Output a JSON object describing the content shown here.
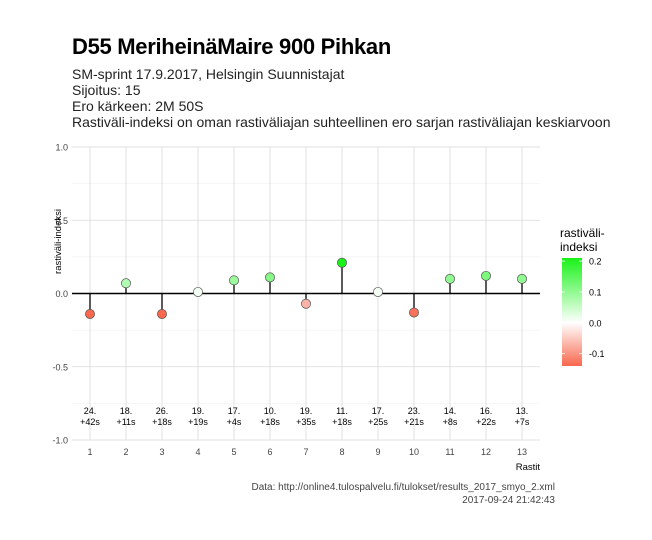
{
  "header": {
    "title": "D55 MeriheinäMaire 900 Pihkan",
    "line1": "SM-sprint 17.9.2017, Helsingin Suunnistajat",
    "line2": "Sijoitus: 15",
    "line3": "Ero kärkeen: 2M 50S",
    "line4": "Rastiväli-indeksi on oman rastiväliajan suhteellinen ero sarjan rastiväliajan keskiarvoon"
  },
  "footer": {
    "source": "Data: http://online4.tulospalvelu.fi/tulokset/results_2017_smyo_2.xml",
    "timestamp": "2017-09-24 21:42:43"
  },
  "colors": {
    "low": "#f8674e",
    "mid": "#ffffff",
    "high": "#19f219"
  },
  "chart_data": {
    "type": "scatter",
    "style": "lollipop",
    "x": [
      1,
      2,
      3,
      4,
      5,
      6,
      7,
      8,
      9,
      10,
      11,
      12,
      13
    ],
    "values": [
      -0.14,
      0.07,
      -0.14,
      0.01,
      0.09,
      0.11,
      -0.07,
      0.21,
      0.01,
      -0.13,
      0.1,
      0.12,
      0.1
    ],
    "labels_line1": [
      "24.",
      "18.",
      "26.",
      "19.",
      "17.",
      "10.",
      "19.",
      "11.",
      "17.",
      "23.",
      "14.",
      "16.",
      "13."
    ],
    "labels_line2": [
      "+42s",
      "+11s",
      "+18s",
      "+19s",
      "+4s",
      "+18s",
      "+35s",
      "+18s",
      "+25s",
      "+21s",
      "+8s",
      "+22s",
      "+7s"
    ],
    "xlabel": "Rastit",
    "ylabel": "rastiväli-indeksi",
    "ylim": [
      -1.0,
      1.0
    ],
    "xlim": [
      0.5,
      13.5
    ],
    "yticks": [
      -1.0,
      -0.5,
      0.0,
      0.5,
      1.0
    ],
    "ytick_labels": [
      "-1.0",
      "-0.5",
      "0.0",
      "0.5",
      "1.0"
    ],
    "xtick_labels": [
      "1",
      "2",
      "3",
      "4",
      "5",
      "6",
      "7",
      "8",
      "9",
      "10",
      "11",
      "12",
      "13"
    ],
    "grid": true,
    "legend": {
      "title_line1": "rastiväli-",
      "title_line2": "indeksi",
      "placement": "right",
      "range": [
        -0.14,
        0.21
      ],
      "ticks": [
        0.2,
        0.1,
        0.0,
        -0.1
      ],
      "tick_labels": [
        "0.2",
        "0.1",
        "0.0",
        "-0.1"
      ]
    }
  }
}
